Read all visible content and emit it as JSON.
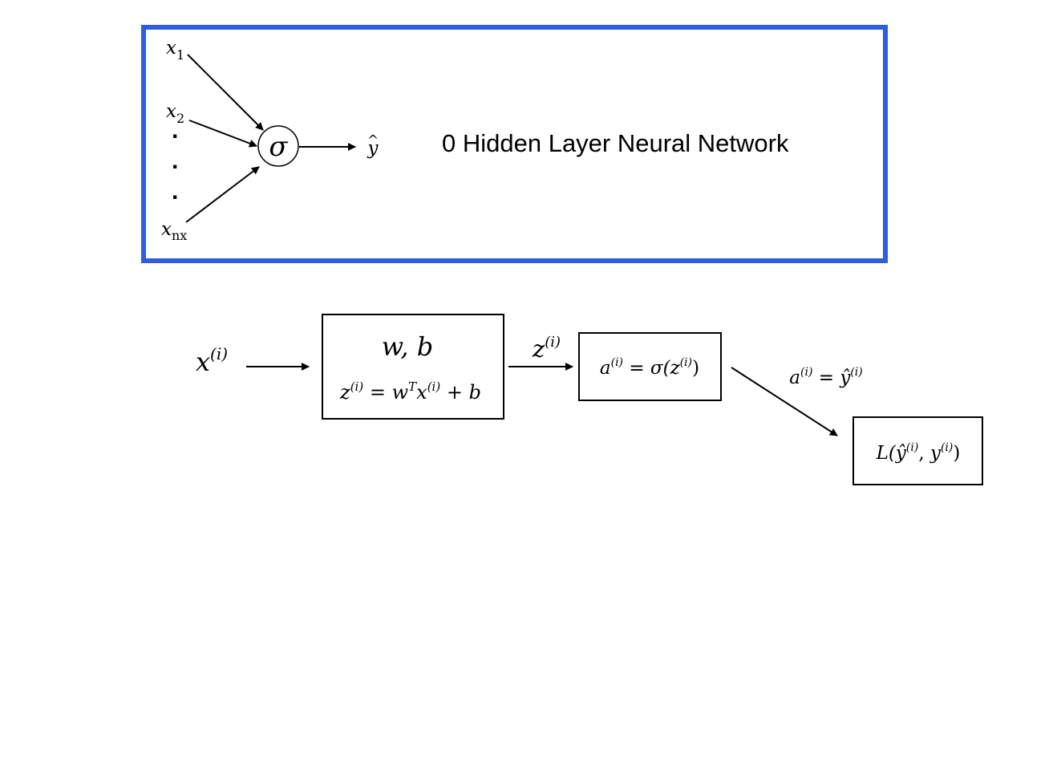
{
  "network_panel": {
    "title": "0 Hidden Layer Neural Network",
    "border_color": "#2f5ce0",
    "inputs": [
      {
        "var": "x",
        "sub": "1"
      },
      {
        "var": "x",
        "sub": "2"
      },
      {
        "var": "x",
        "sub": "nx"
      }
    ],
    "ellipsis": ".",
    "neuron_symbol": "σ",
    "output": {
      "var": "y",
      "hat": "^"
    }
  },
  "pipeline": {
    "input": {
      "var": "x",
      "sup": "(i)"
    },
    "params_box": {
      "line1": "w, b",
      "z_var": "z",
      "z_sup": "(i)",
      "eq": " = ",
      "w_var": "w",
      "w_sup": "T",
      "x_var": "x",
      "x_sup": "(i)",
      "plus_b": " + b"
    },
    "z_edge_label": {
      "var": "z",
      "sup": "(i)"
    },
    "activation_box": {
      "a_var": "a",
      "a_sup": "(i)",
      "eq": " = σ(",
      "z_var": "z",
      "z_sup": "(i)",
      "close": ")"
    },
    "a_edge_label": {
      "a_var": "a",
      "a_sup": "(i)",
      "eq": " = ",
      "yhat_var": "ŷ",
      "yhat_sup": "(i)"
    },
    "loss_box": {
      "fn": "L(",
      "yhat_var": "ŷ",
      "yhat_sup": "(i)",
      "sep": ", ",
      "y_var": "y",
      "y_sup": "(i)",
      "close": ")"
    }
  }
}
